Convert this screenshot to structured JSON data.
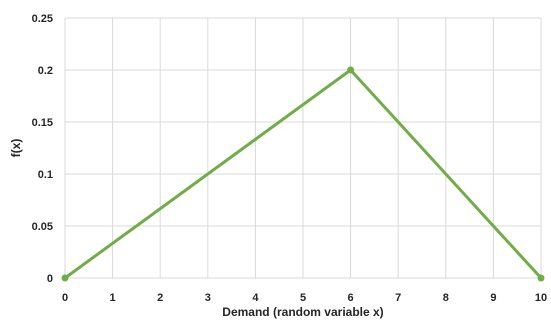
{
  "chart_data": {
    "type": "line",
    "xlabel": "Demand (random variable x)",
    "ylabel": "f(x)",
    "xlim": [
      0,
      10
    ],
    "ylim": [
      0,
      0.25
    ],
    "x_ticks": [
      "0",
      "1",
      "2",
      "3",
      "4",
      "5",
      "6",
      "7",
      "8",
      "9",
      "10"
    ],
    "y_ticks": [
      "0",
      "0.05",
      "0.1",
      "0.15",
      "0.2",
      "0.25"
    ],
    "grid": true,
    "legend": "none",
    "series": [
      {
        "x": [
          0,
          6,
          10
        ],
        "y": [
          0,
          0.2,
          0
        ],
        "color": "#70ad47"
      }
    ]
  }
}
